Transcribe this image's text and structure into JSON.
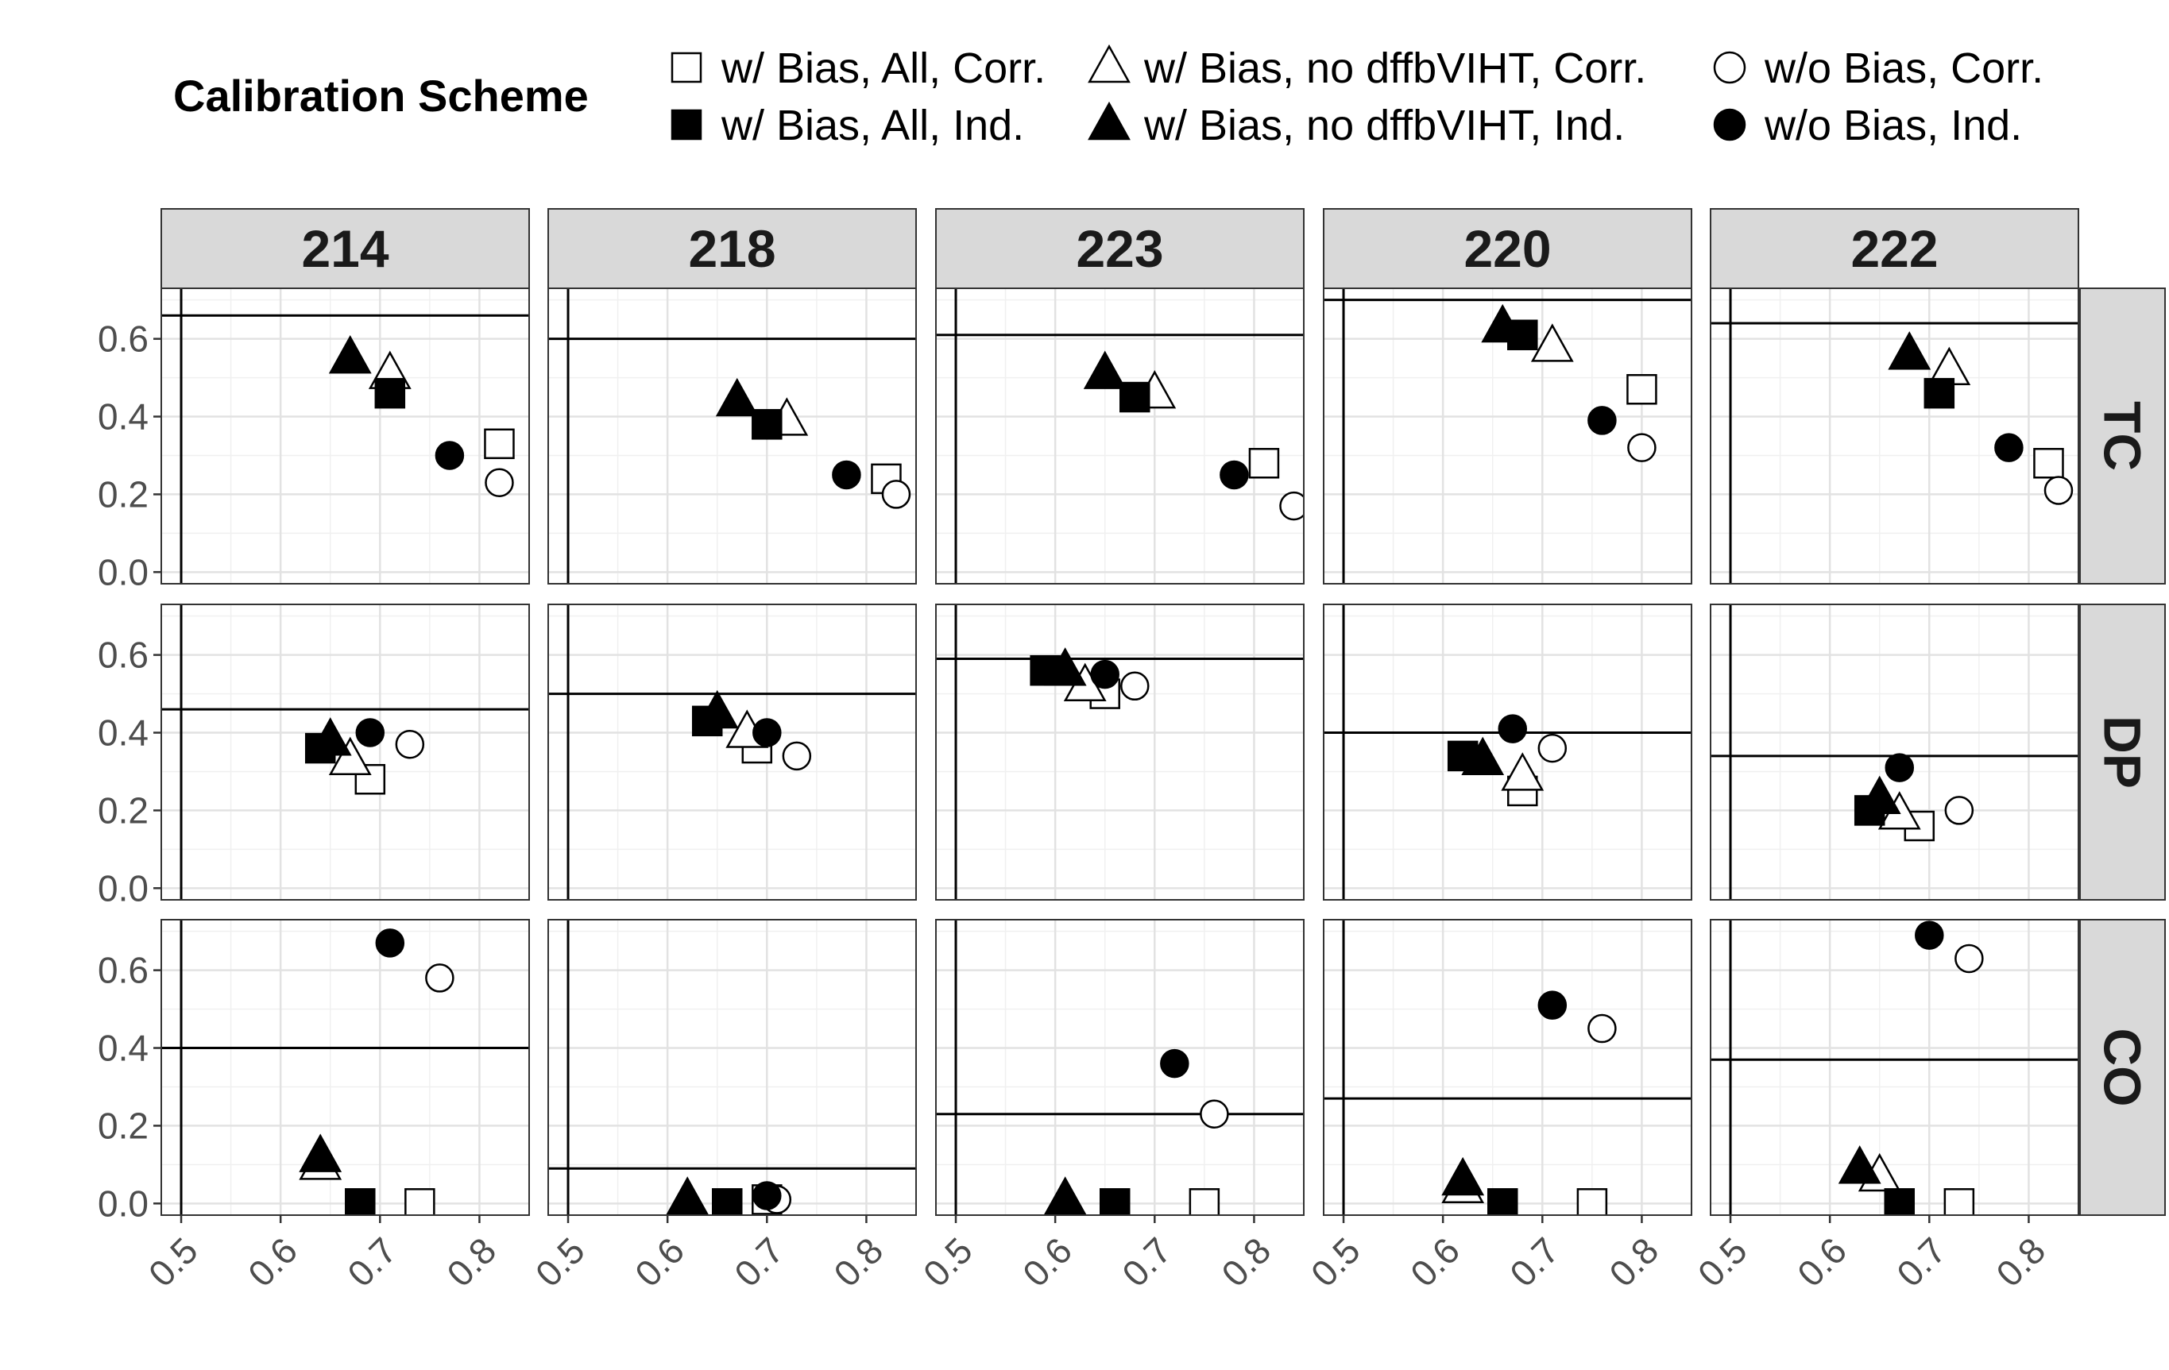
{
  "legend": {
    "title": "Calibration Scheme",
    "items": [
      {
        "key": "bias_all_corr",
        "label": "w/ Bias, All, Corr.",
        "shape": "square",
        "filled": false
      },
      {
        "key": "bias_all_ind",
        "label": "w/ Bias, All, Ind.",
        "shape": "square",
        "filled": true
      },
      {
        "key": "bias_nodff_corr",
        "label": "w/ Bias, no dffbVIHT, Corr.",
        "shape": "triangle",
        "filled": false
      },
      {
        "key": "bias_nodff_ind",
        "label": "w/ Bias, no dffbVIHT, Ind.",
        "shape": "triangle",
        "filled": true
      },
      {
        "key": "nobias_corr",
        "label": "w/o Bias, Corr.",
        "shape": "circle",
        "filled": false
      },
      {
        "key": "nobias_ind",
        "label": "w/o Bias, Ind.",
        "shape": "circle",
        "filled": true
      }
    ]
  },
  "chart_data": {
    "type": "scatter",
    "columns": [
      "214",
      "218",
      "223",
      "220",
      "222"
    ],
    "rows": [
      "TC",
      "DP",
      "CO"
    ],
    "xlim": [
      0.48,
      0.85
    ],
    "ylim": [
      -0.03,
      0.73
    ],
    "xticks": [
      0.5,
      0.6,
      0.7,
      0.8
    ],
    "xtick_labels": [
      "0.5",
      "0.6",
      "0.7",
      "0.8"
    ],
    "yticks": [
      0.0,
      0.2,
      0.4,
      0.6
    ],
    "ytick_labels": [
      "0.0",
      "0.2",
      "0.4",
      "0.6"
    ],
    "reference_vline_x": 0.5,
    "grid": true,
    "legend_position": "top",
    "panels": [
      {
        "column": "214",
        "row": "TC",
        "hline": 0.66,
        "points": {
          "bias_all_corr": [
            0.82,
            0.33
          ],
          "bias_all_ind": [
            0.71,
            0.46
          ],
          "bias_nodff_corr": [
            0.71,
            0.51
          ],
          "bias_nodff_ind": [
            0.67,
            0.55
          ],
          "nobias_corr": [
            0.82,
            0.23
          ],
          "nobias_ind": [
            0.77,
            0.3
          ]
        }
      },
      {
        "column": "218",
        "row": "TC",
        "hline": 0.6,
        "points": {
          "bias_all_corr": [
            0.82,
            0.24
          ],
          "bias_all_ind": [
            0.7,
            0.38
          ],
          "bias_nodff_corr": [
            0.72,
            0.39
          ],
          "bias_nodff_ind": [
            0.67,
            0.44
          ],
          "nobias_corr": [
            0.83,
            0.2
          ],
          "nobias_ind": [
            0.78,
            0.25
          ]
        }
      },
      {
        "column": "223",
        "row": "TC",
        "hline": 0.61,
        "points": {
          "bias_all_corr": [
            0.81,
            0.28
          ],
          "bias_all_ind": [
            0.68,
            0.45
          ],
          "bias_nodff_corr": [
            0.7,
            0.46
          ],
          "bias_nodff_ind": [
            0.65,
            0.51
          ],
          "nobias_corr": [
            0.84,
            0.17
          ],
          "nobias_ind": [
            0.78,
            0.25
          ]
        }
      },
      {
        "column": "220",
        "row": "TC",
        "hline": 0.7,
        "points": {
          "bias_all_corr": [
            0.8,
            0.47
          ],
          "bias_all_ind": [
            0.68,
            0.61
          ],
          "bias_nodff_corr": [
            0.71,
            0.58
          ],
          "bias_nodff_ind": [
            0.66,
            0.63
          ],
          "nobias_corr": [
            0.8,
            0.32
          ],
          "nobias_ind": [
            0.76,
            0.39
          ]
        }
      },
      {
        "column": "222",
        "row": "TC",
        "hline": 0.64,
        "points": {
          "bias_all_corr": [
            0.82,
            0.28
          ],
          "bias_all_ind": [
            0.71,
            0.46
          ],
          "bias_nodff_corr": [
            0.72,
            0.52
          ],
          "bias_nodff_ind": [
            0.68,
            0.56
          ],
          "nobias_corr": [
            0.83,
            0.21
          ],
          "nobias_ind": [
            0.78,
            0.32
          ]
        }
      },
      {
        "column": "214",
        "row": "DP",
        "hline": 0.46,
        "points": {
          "bias_all_corr": [
            0.69,
            0.28
          ],
          "bias_all_ind": [
            0.64,
            0.36
          ],
          "bias_nodff_corr": [
            0.67,
            0.33
          ],
          "bias_nodff_ind": [
            0.65,
            0.38
          ],
          "nobias_corr": [
            0.73,
            0.37
          ],
          "nobias_ind": [
            0.69,
            0.4
          ]
        }
      },
      {
        "column": "218",
        "row": "DP",
        "hline": 0.5,
        "points": {
          "bias_all_corr": [
            0.69,
            0.36
          ],
          "bias_all_ind": [
            0.64,
            0.43
          ],
          "bias_nodff_corr": [
            0.68,
            0.4
          ],
          "bias_nodff_ind": [
            0.65,
            0.45
          ],
          "nobias_corr": [
            0.73,
            0.34
          ],
          "nobias_ind": [
            0.7,
            0.4
          ]
        }
      },
      {
        "column": "223",
        "row": "DP",
        "hline": 0.59,
        "points": {
          "bias_all_corr": [
            0.65,
            0.5
          ],
          "bias_all_ind": [
            0.59,
            0.56
          ],
          "bias_nodff_corr": [
            0.63,
            0.52
          ],
          "bias_nodff_ind": [
            0.61,
            0.56
          ],
          "nobias_corr": [
            0.68,
            0.52
          ],
          "nobias_ind": [
            0.65,
            0.55
          ]
        }
      },
      {
        "column": "220",
        "row": "DP",
        "hline": 0.4,
        "points": {
          "bias_all_corr": [
            0.68,
            0.25
          ],
          "bias_all_ind": [
            0.62,
            0.34
          ],
          "bias_nodff_corr": [
            0.68,
            0.29
          ],
          "bias_nodff_ind": [
            0.64,
            0.33
          ],
          "nobias_corr": [
            0.71,
            0.36
          ],
          "nobias_ind": [
            0.67,
            0.41
          ]
        }
      },
      {
        "column": "222",
        "row": "DP",
        "hline": 0.34,
        "points": {
          "bias_all_corr": [
            0.69,
            0.16
          ],
          "bias_all_ind": [
            0.64,
            0.2
          ],
          "bias_nodff_corr": [
            0.67,
            0.19
          ],
          "bias_nodff_ind": [
            0.65,
            0.23
          ],
          "nobias_corr": [
            0.73,
            0.2
          ],
          "nobias_ind": [
            0.67,
            0.31
          ]
        }
      },
      {
        "column": "214",
        "row": "CO",
        "hline": 0.4,
        "points": {
          "bias_all_corr": [
            0.74,
            0.0
          ],
          "bias_all_ind": [
            0.68,
            0.0
          ],
          "bias_nodff_corr": [
            0.64,
            0.1
          ],
          "bias_nodff_ind": [
            0.64,
            0.12
          ],
          "nobias_corr": [
            0.76,
            0.58
          ],
          "nobias_ind": [
            0.71,
            0.67
          ]
        }
      },
      {
        "column": "218",
        "row": "CO",
        "hline": 0.09,
        "points": {
          "bias_all_corr": [
            0.7,
            0.01
          ],
          "bias_all_ind": [
            0.66,
            0.0
          ],
          "bias_nodff_corr": [
            0.62,
            0.0
          ],
          "bias_nodff_ind": [
            0.62,
            0.01
          ],
          "nobias_corr": [
            0.71,
            0.01
          ],
          "nobias_ind": [
            0.7,
            0.02
          ]
        }
      },
      {
        "column": "223",
        "row": "CO",
        "hline": 0.23,
        "points": {
          "bias_all_corr": [
            0.75,
            0.0
          ],
          "bias_all_ind": [
            0.66,
            0.0
          ],
          "bias_nodff_corr": [
            0.61,
            0.0
          ],
          "bias_nodff_ind": [
            0.61,
            0.01
          ],
          "nobias_corr": [
            0.76,
            0.23
          ],
          "nobias_ind": [
            0.72,
            0.36
          ]
        }
      },
      {
        "column": "220",
        "row": "CO",
        "hline": 0.27,
        "points": {
          "bias_all_corr": [
            0.75,
            0.0
          ],
          "bias_all_ind": [
            0.66,
            0.0
          ],
          "bias_nodff_corr": [
            0.62,
            0.04
          ],
          "bias_nodff_ind": [
            0.62,
            0.06
          ],
          "nobias_corr": [
            0.76,
            0.45
          ],
          "nobias_ind": [
            0.71,
            0.51
          ]
        }
      },
      {
        "column": "222",
        "row": "CO",
        "hline": 0.37,
        "points": {
          "bias_all_corr": [
            0.73,
            0.0
          ],
          "bias_all_ind": [
            0.67,
            0.0
          ],
          "bias_nodff_corr": [
            0.65,
            0.07
          ],
          "bias_nodff_ind": [
            0.63,
            0.09
          ],
          "nobias_corr": [
            0.74,
            0.63
          ],
          "nobias_ind": [
            0.7,
            0.69
          ]
        }
      }
    ]
  }
}
